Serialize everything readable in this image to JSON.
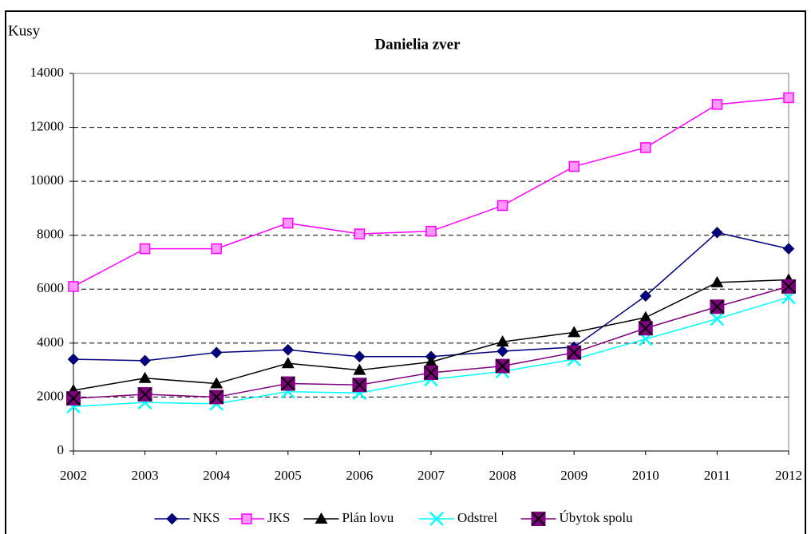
{
  "chart_data": {
    "type": "line",
    "title": "Danielia zver",
    "y_label": "Kusy",
    "categories": [
      "2002",
      "2003",
      "2004",
      "2005",
      "2006",
      "2007",
      "2008",
      "2009",
      "2010",
      "2011",
      "2012"
    ],
    "series": [
      {
        "name": "NKS",
        "color": "#000080",
        "marker": "diamond",
        "values": [
          3400,
          3350,
          3650,
          3750,
          3500,
          3500,
          3700,
          3850,
          5750,
          8100,
          7500
        ]
      },
      {
        "name": "JKS",
        "color": "#ff00ff",
        "marker": "square",
        "values": [
          6100,
          7500,
          7500,
          8450,
          8050,
          8150,
          9100,
          10550,
          11250,
          12850,
          13100
        ]
      },
      {
        "name": "Plán lovu",
        "color": "#000000",
        "marker": "triangle",
        "values": [
          2250,
          2700,
          2500,
          3250,
          3000,
          3300,
          4050,
          4400,
          4950,
          6250,
          6350
        ]
      },
      {
        "name": "Odstrel",
        "color": "#00ffff",
        "marker": "x",
        "values": [
          1650,
          1800,
          1750,
          2200,
          2150,
          2650,
          2950,
          3400,
          4150,
          4900,
          5700
        ]
      },
      {
        "name": "Úbytok spolu",
        "color": "#800080",
        "marker": "boxx",
        "values": [
          1950,
          2100,
          2000,
          2500,
          2450,
          2900,
          3150,
          3650,
          4550,
          5350,
          6100
        ]
      }
    ],
    "ylim": [
      0,
      14000
    ],
    "yticks": [
      0,
      2000,
      4000,
      6000,
      8000,
      10000,
      12000,
      14000
    ],
    "grid": true,
    "legend": "bottom"
  }
}
